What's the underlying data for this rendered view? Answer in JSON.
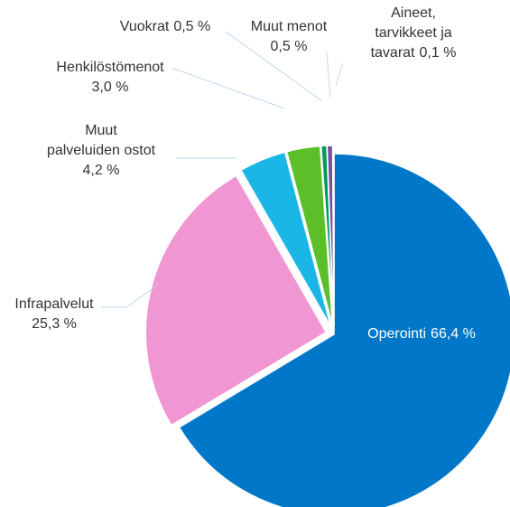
{
  "chart_data": {
    "type": "pie",
    "categories": [
      "Operointi",
      "Infrapalvelut",
      "Muut palveluiden ostot",
      "Henkilöstömenot",
      "Vuokrat",
      "Muut menot",
      "Aineet, tarvikkeet ja tavarat"
    ],
    "values": [
      66.4,
      25.3,
      4.2,
      3.0,
      0.5,
      0.5,
      0.1
    ],
    "value_labels": [
      "66,4 %",
      "25,3 %",
      "4,2 %",
      "3,0 %",
      "0,5 %",
      "0,5 %",
      "0,1 %"
    ],
    "colors": [
      "#0077c8",
      "#f096d2",
      "#1ab7e6",
      "#5cbf2a",
      "#009a5a",
      "#7b4fa0",
      "#e0006e"
    ]
  }
}
